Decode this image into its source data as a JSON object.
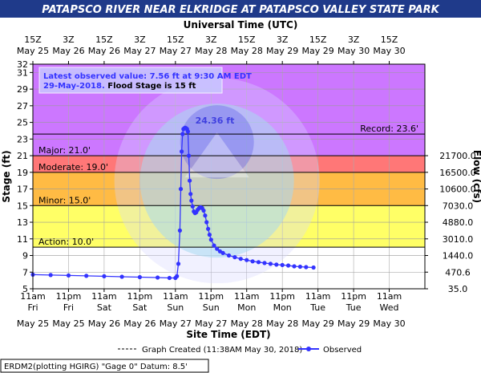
{
  "title": "PATAPSCO RIVER NEAR ELKRIDGE AT PATAPSCO VALLEY STATE PARK",
  "colors": {
    "title_bg": "#1f3a8a",
    "major": "#cc77ff",
    "moderate_band": "#ff7777",
    "minor_band": "#ffbb44",
    "action_band": "#ffff66",
    "normal": "#ffffff",
    "series": "#3333ff",
    "latest_text": "#3333ff"
  },
  "chart_data": {
    "type": "line",
    "title": "PATAPSCO RIVER NEAR ELKRIDGE AT PATAPSCO VALLEY STATE PARK",
    "top_axis_label": "Universal Time (UTC)",
    "xlabel": "Site Time (EDT)",
    "ylabel_left": "Stage (ft)",
    "ylabel_right": "Flow (cfs)",
    "ylim": [
      5,
      32
    ],
    "x_range_hours": [
      0,
      132
    ],
    "top_ticks": [
      {
        "h": 0,
        "l1": "15Z",
        "l2": "May 25"
      },
      {
        "h": 12,
        "l1": "3Z",
        "l2": "May 26"
      },
      {
        "h": 24,
        "l1": "15Z",
        "l2": "May 26"
      },
      {
        "h": 36,
        "l1": "3Z",
        "l2": "May 27"
      },
      {
        "h": 48,
        "l1": "15Z",
        "l2": "May 27"
      },
      {
        "h": 60,
        "l1": "3Z",
        "l2": "May 28"
      },
      {
        "h": 72,
        "l1": "15Z",
        "l2": "May 28"
      },
      {
        "h": 84,
        "l1": "3Z",
        "l2": "May 29"
      },
      {
        "h": 96,
        "l1": "15Z",
        "l2": "May 29"
      },
      {
        "h": 108,
        "l1": "3Z",
        "l2": "May 30"
      },
      {
        "h": 120,
        "l1": "15Z",
        "l2": "May 30"
      }
    ],
    "bottom_ticks": [
      {
        "h": 0,
        "l1": "11am",
        "l2": "Fri",
        "l3": "May 25"
      },
      {
        "h": 12,
        "l1": "11pm",
        "l2": "Fri",
        "l3": "May 25"
      },
      {
        "h": 24,
        "l1": "11am",
        "l2": "Sat",
        "l3": "May 26"
      },
      {
        "h": 36,
        "l1": "11pm",
        "l2": "Sat",
        "l3": "May 26"
      },
      {
        "h": 48,
        "l1": "11am",
        "l2": "Sun",
        "l3": "May 27"
      },
      {
        "h": 60,
        "l1": "11pm",
        "l2": "Sun",
        "l3": "May 27"
      },
      {
        "h": 72,
        "l1": "11am",
        "l2": "Mon",
        "l3": "May 28"
      },
      {
        "h": 84,
        "l1": "11pm",
        "l2": "Mon",
        "l3": "May 28"
      },
      {
        "h": 96,
        "l1": "11am",
        "l2": "Tue",
        "l3": "May 29"
      },
      {
        "h": 108,
        "l1": "11pm",
        "l2": "Tue",
        "l3": "May 29"
      },
      {
        "h": 120,
        "l1": "11am",
        "l2": "Wed",
        "l3": "May 30"
      }
    ],
    "y_ticks": [
      5,
      7,
      9,
      11,
      13,
      15,
      17,
      19,
      21,
      23,
      25,
      27,
      29,
      31,
      32
    ],
    "flow_ticks": [
      {
        "stage": 5,
        "label": "35.0"
      },
      {
        "stage": 7,
        "label": "470.6"
      },
      {
        "stage": 9,
        "label": "1440.0"
      },
      {
        "stage": 11,
        "label": "3010.0"
      },
      {
        "stage": 13,
        "label": "4880.0"
      },
      {
        "stage": 15,
        "label": "7030.0"
      },
      {
        "stage": 17,
        "label": "10600.0"
      },
      {
        "stage": 19,
        "label": "16500.0"
      },
      {
        "stage": 21,
        "label": "21700.0"
      }
    ],
    "flood_categories": [
      {
        "name": "Major",
        "label": "Major: 21.0'",
        "stage": 21.0,
        "band": [
          21.0,
          32
        ],
        "color": "#cc77ff"
      },
      {
        "name": "Moderate",
        "label": "Moderate: 19.0'",
        "stage": 19.0,
        "band": [
          19.0,
          21.0
        ],
        "color": "#ff7777"
      },
      {
        "name": "Minor",
        "label": "Minor: 15.0'",
        "stage": 15.0,
        "band": [
          15.0,
          19.0
        ],
        "color": "#ffbb44"
      },
      {
        "name": "Action",
        "label": "Action: 10.0'",
        "stage": 10.0,
        "band": [
          10.0,
          15.0
        ],
        "color": "#ffff66"
      }
    ],
    "record": {
      "label": "Record: 23.6'",
      "stage": 23.6
    },
    "peak": {
      "label": "24.36 ft",
      "h": 51.2,
      "stage": 24.36
    },
    "latest": {
      "line1": "Latest observed value: 7.56 ft at 9:30 AM EDT",
      "line2_date": "29-May-2018.",
      "line2_rest": " Flood Stage is 15 ft"
    },
    "series": [
      {
        "name": "Observed",
        "points": [
          [
            0,
            6.7
          ],
          [
            6,
            6.65
          ],
          [
            12,
            6.6
          ],
          [
            18,
            6.55
          ],
          [
            24,
            6.5
          ],
          [
            30,
            6.45
          ],
          [
            36,
            6.4
          ],
          [
            42,
            6.35
          ],
          [
            46,
            6.3
          ],
          [
            48,
            6.3
          ],
          [
            48.5,
            6.5
          ],
          [
            49.0,
            8.0
          ],
          [
            49.5,
            12.0
          ],
          [
            49.8,
            17.0
          ],
          [
            50.1,
            21.5
          ],
          [
            50.4,
            23.6
          ],
          [
            50.7,
            24.2
          ],
          [
            51.0,
            24.3
          ],
          [
            51.3,
            24.36
          ],
          [
            51.6,
            24.3
          ],
          [
            51.9,
            24.2
          ],
          [
            52.2,
            23.9
          ],
          [
            52.5,
            21.0
          ],
          [
            52.8,
            18.0
          ],
          [
            53.1,
            16.4
          ],
          [
            53.4,
            15.6
          ],
          [
            53.8,
            14.9
          ],
          [
            54.2,
            14.3
          ],
          [
            54.6,
            14.1
          ],
          [
            55.0,
            14.2
          ],
          [
            55.5,
            14.5
          ],
          [
            56.0,
            14.7
          ],
          [
            56.5,
            14.8
          ],
          [
            57.0,
            14.7
          ],
          [
            57.5,
            14.4
          ],
          [
            58.0,
            13.8
          ],
          [
            58.5,
            13.0
          ],
          [
            59.0,
            12.2
          ],
          [
            59.5,
            11.5
          ],
          [
            60.0,
            10.9
          ],
          [
            61.0,
            10.2
          ],
          [
            62.0,
            9.8
          ],
          [
            63.0,
            9.5
          ],
          [
            64.0,
            9.3
          ],
          [
            66.0,
            9.0
          ],
          [
            68.0,
            8.8
          ],
          [
            70.0,
            8.6
          ],
          [
            72.0,
            8.45
          ],
          [
            74.0,
            8.3
          ],
          [
            76.0,
            8.2
          ],
          [
            78.0,
            8.1
          ],
          [
            80.0,
            8.0
          ],
          [
            82.0,
            7.9
          ],
          [
            84.0,
            7.85
          ],
          [
            86.0,
            7.8
          ],
          [
            88.0,
            7.7
          ],
          [
            90.0,
            7.65
          ],
          [
            92.0,
            7.6
          ],
          [
            94.5,
            7.56
          ]
        ]
      }
    ],
    "legend": {
      "created": "Graph Created (11:38AM May 30, 2018)",
      "observed": "Observed"
    },
    "footer": "ERDM2(plotting HGIRG) \"Gage 0\" Datum:  8.5'"
  }
}
